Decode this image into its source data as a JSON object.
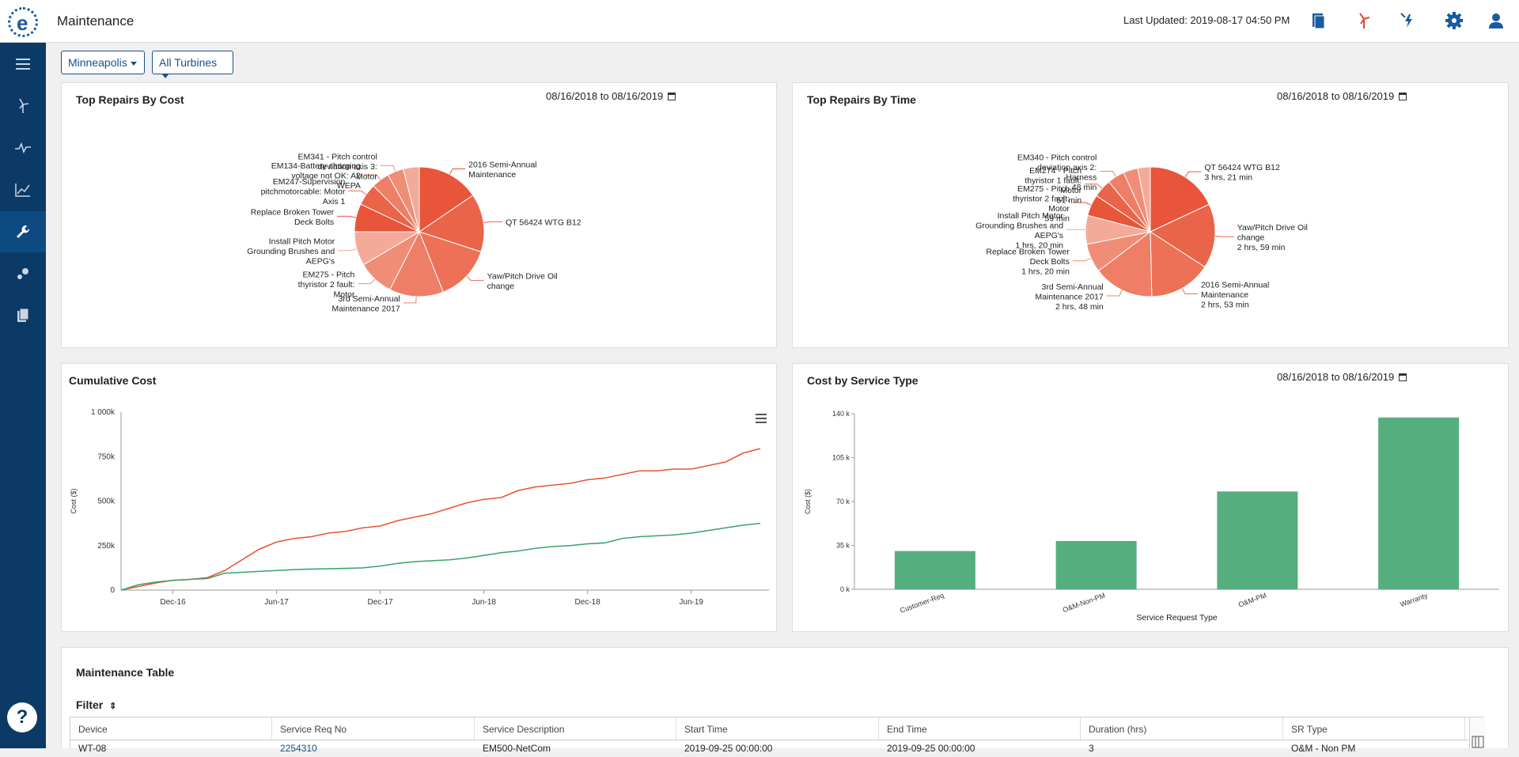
{
  "app": {
    "title": "Maintenance",
    "last_updated": "Last Updated: 2019-08-17 04:50 PM"
  },
  "header_icons": [
    "document-icon",
    "turbine-icon",
    "power-alert-icon",
    "settings-icon",
    "user-icon"
  ],
  "sidebar": {
    "items": [
      "menu-icon",
      "turbine-icon",
      "pulse-icon",
      "trend-icon",
      "wrench-icon",
      "scatter-icon",
      "reports-icon"
    ],
    "active": "wrench-icon",
    "help": "?"
  },
  "filters": {
    "site": "Minneapolis",
    "turbines": "All Turbines"
  },
  "panels": {
    "repairs_cost": {
      "title": "Top Repairs By Cost",
      "date_from": "08/16/2018",
      "date_to": "08/16/2019",
      "to": "to"
    },
    "repairs_time": {
      "title": "Top Repairs By Time",
      "date_from": "08/16/2018",
      "date_to": "08/16/2019",
      "to": "to"
    },
    "cumulative": {
      "title": "Cumulative Cost"
    },
    "service_type": {
      "title": "Cost by Service Type",
      "date_from": "08/16/2018",
      "date_to": "08/16/2019",
      "to": "to"
    }
  },
  "table": {
    "title": "Maintenance Table",
    "filter_label": "Filter",
    "columns": [
      "Device",
      "Service Req No",
      "Service Description",
      "Start Time",
      "End Time",
      "Duration (hrs)",
      "SR Type"
    ],
    "rows": [
      [
        "WT-08",
        "2254310",
        "EM500-NetCom",
        "2019-09-25 00:00:00",
        "2019-09-25 00:00:00",
        "3",
        "O&M - Non PM"
      ]
    ]
  },
  "chart_data": [
    {
      "type": "pie",
      "title": "Top Repairs By Cost",
      "slices": [
        {
          "label": "2016 Semi-Annual Maintenance",
          "value": 15.5,
          "color": "#e8553a"
        },
        {
          "label": "QT 56424 WTG B12",
          "value": 14.5,
          "color": "#ea6449"
        },
        {
          "label": "Yaw/Pitch Drive Oil change",
          "value": 14.0,
          "color": "#ec7157"
        },
        {
          "label": "3rd Semi-Annual Maintenance 2017",
          "value": 13.5,
          "color": "#ee7e66"
        },
        {
          "label": "EM275 - Pitch thyristor 2 fault: Motor",
          "value": 9.0,
          "color": "#f08d77"
        },
        {
          "label": "Install Pitch Motor Grounding Brushes and AEPG's",
          "value": 8.5,
          "color": "#f4aa98"
        },
        {
          "label": "Replace Broken Tower Deck Bolts",
          "value": 7.0,
          "color": "#e8553a"
        },
        {
          "label": "EM247-Supervision pitchmotorcable: Motor Axis 1",
          "value": 5.5,
          "color": "#ea6449"
        },
        {
          "label": "EM134-Battery charging voltage not OK: A2 WEPA",
          "value": 4.5,
          "color": "#ee7e66"
        },
        {
          "label": "EM341 - Pitch control deviation axis 3: Motor",
          "value": 4.0,
          "color": "#f08d77"
        },
        {
          "label": "",
          "value": 4.0,
          "color": "#f4aa98"
        }
      ]
    },
    {
      "type": "pie",
      "title": "Top Repairs By Time",
      "slices": [
        {
          "label": "QT 56424 WTG B12",
          "value": 201,
          "color": "#e8553a",
          "text": "3 hrs, 21 min"
        },
        {
          "label": "Yaw/Pitch Drive Oil change",
          "value": 179,
          "color": "#ea6449",
          "text": "2 hrs, 59 min"
        },
        {
          "label": "2016 Semi-Annual Maintenance",
          "value": 173,
          "color": "#ec7157",
          "text": "2 hrs, 53 min"
        },
        {
          "label": "3rd Semi-Annual Maintenance 2017",
          "value": 168,
          "color": "#ee7e66",
          "text": "2 hrs, 48 min"
        },
        {
          "label": "Replace Broken Tower Deck Bolts",
          "value": 80,
          "color": "#f08d77",
          "text": "1 hrs, 20 min"
        },
        {
          "label": "Install Pitch Motor Grounding Brushes and AEPG's",
          "value": 80,
          "color": "#f4aa98",
          "text": "1 hrs, 20 min"
        },
        {
          "label": "EM275 - Pitch thyristor 2 fault: Motor",
          "value": 59,
          "color": "#e8553a",
          "text": "59 min"
        },
        {
          "label": "EM274 - Pitch thyristor 1 fault: Motor",
          "value": 51,
          "color": "#ea6449",
          "text": "51 min"
        },
        {
          "label": "EM340 - Pitch control deviation axis 2: Harness",
          "value": 48,
          "color": "#ee7e66",
          "text": "48 min"
        },
        {
          "label": "",
          "value": 40,
          "color": "#f08d77",
          "text": ""
        },
        {
          "label": "",
          "value": 35,
          "color": "#f4aa98",
          "text": ""
        }
      ]
    },
    {
      "type": "line",
      "title": "Cumulative Cost",
      "ylabel": "Cost ($)",
      "y_ticks": [
        "0",
        "250k",
        "500k",
        "750k",
        "1 000k"
      ],
      "ylim": [
        0,
        1000000
      ],
      "x_ticks": [
        "Dec-16",
        "Jun-17",
        "Dec-17",
        "Jun-18",
        "Dec-18",
        "Jun-19"
      ],
      "x_tick_positions": [
        3,
        9,
        15,
        21,
        27,
        33
      ],
      "xlim": [
        0,
        37.5
      ],
      "series": [
        {
          "color": "#e8553a",
          "x": [
            0,
            1,
            2,
            3,
            4,
            5,
            6,
            7,
            8,
            9,
            10,
            11,
            12,
            13,
            14,
            15,
            16,
            17,
            18,
            19,
            20,
            21,
            22,
            23,
            24,
            25,
            26,
            27,
            28,
            29,
            30,
            31,
            32,
            33,
            34,
            35,
            36,
            37
          ],
          "y": [
            0,
            20000,
            40000,
            55000,
            60000,
            70000,
            110000,
            170000,
            230000,
            270000,
            290000,
            300000,
            320000,
            330000,
            350000,
            360000,
            390000,
            410000,
            430000,
            460000,
            490000,
            510000,
            520000,
            560000,
            580000,
            590000,
            600000,
            620000,
            630000,
            650000,
            670000,
            670000,
            680000,
            680000,
            700000,
            720000,
            770000,
            795000
          ]
        },
        {
          "color": "#3aa46a",
          "x": [
            0,
            1,
            2,
            3,
            4,
            5,
            6,
            7,
            8,
            9,
            10,
            11,
            12,
            13,
            14,
            15,
            16,
            17,
            18,
            19,
            20,
            21,
            22,
            23,
            24,
            25,
            26,
            27,
            28,
            29,
            30,
            31,
            32,
            33,
            34,
            35,
            36,
            37
          ],
          "y": [
            0,
            30000,
            45000,
            55000,
            60000,
            65000,
            95000,
            100000,
            105000,
            110000,
            115000,
            118000,
            120000,
            122000,
            125000,
            135000,
            150000,
            160000,
            165000,
            170000,
            180000,
            195000,
            210000,
            220000,
            235000,
            245000,
            250000,
            260000,
            265000,
            290000,
            300000,
            305000,
            310000,
            320000,
            335000,
            350000,
            365000,
            375000
          ]
        }
      ]
    },
    {
      "type": "bar",
      "title": "Cost by Service Type",
      "categories": [
        "Customer-Req",
        "O&M-Non-PM",
        "O&M-PM",
        "Warranty"
      ],
      "values": [
        30500,
        38500,
        78000,
        137000
      ],
      "color": "#55ae7e",
      "xlabel": "Service Request Type",
      "ylabel": "Cost ($)",
      "y_ticks": [
        "0 k",
        "35 k",
        "70 k",
        "105 k",
        "140 k"
      ],
      "ylim": [
        0,
        140000
      ]
    }
  ]
}
